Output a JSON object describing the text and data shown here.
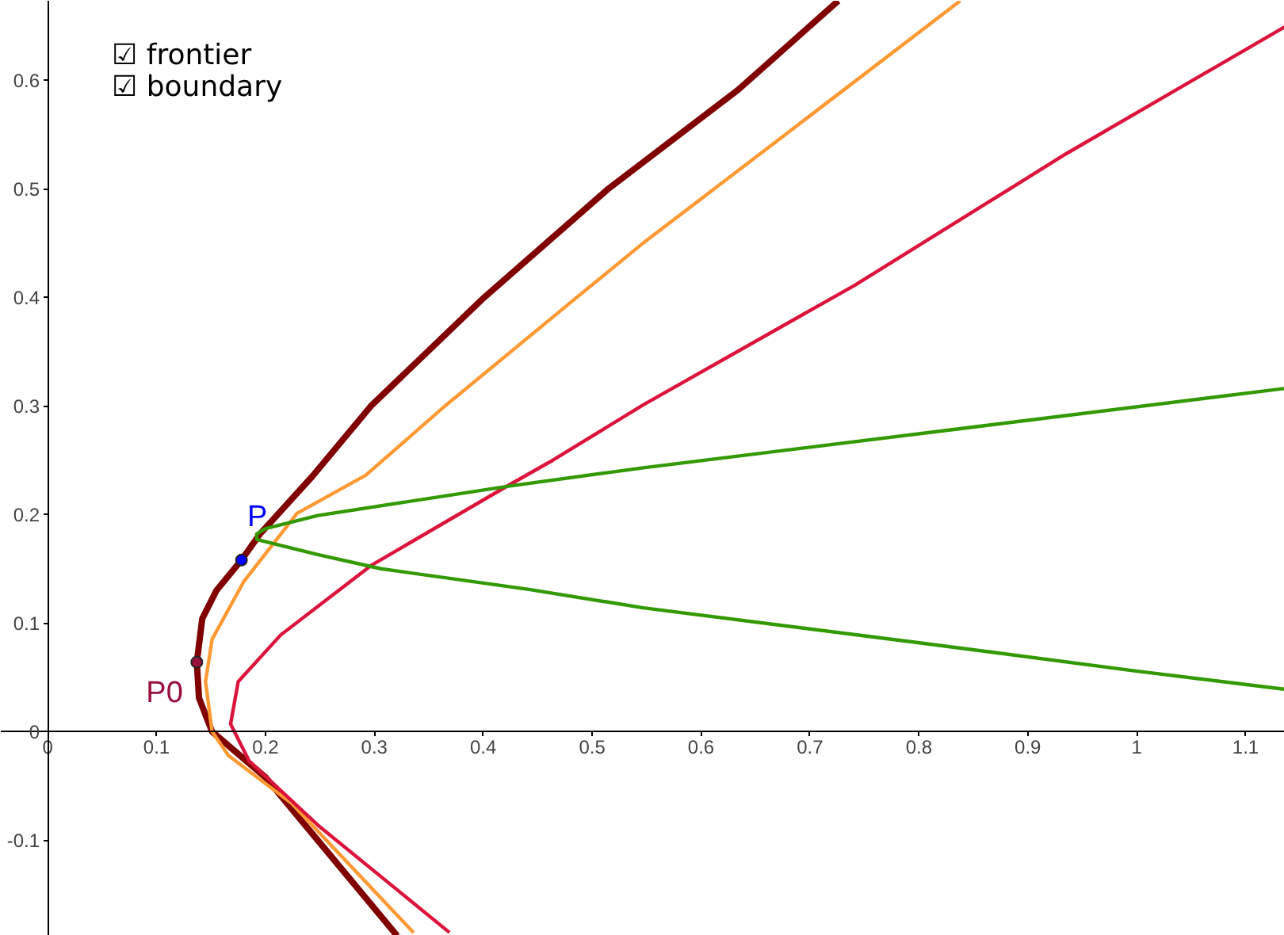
{
  "chart_data": {
    "type": "line",
    "xlim": [
      -0.043,
      1.136
    ],
    "ylim": [
      -0.188,
      0.673
    ],
    "xticks": [
      0,
      0.1,
      0.2,
      0.3,
      0.4,
      0.5,
      0.6,
      0.7,
      0.8,
      0.9,
      1,
      1.1
    ],
    "yticks": [
      -0.1,
      0,
      0.1,
      0.2,
      0.3,
      0.4,
      0.5,
      0.6
    ],
    "series": [
      {
        "color": "#800000",
        "x": [
          0.321,
          0.248,
          0.2,
          0.151,
          0.139,
          0.137,
          0.142,
          0.155,
          0.178,
          0.195,
          0.243,
          0.297,
          0.401,
          0.515,
          0.634,
          0.726
        ],
        "values": [
          -0.188,
          -0.1,
          -0.042,
          0,
          0.031,
          0.064,
          0.104,
          0.13,
          0.158,
          0.182,
          0.235,
          0.3,
          0.4,
          0.5,
          0.591,
          0.673
        ]
      },
      {
        "color": "#ff9933",
        "x": [
          0.336,
          0.224,
          0.166,
          0.151,
          0.145,
          0.151,
          0.18,
          0.229,
          0.292,
          0.365,
          0.486,
          0.547,
          0.692,
          0.838
        ],
        "values": [
          -0.185,
          -0.066,
          -0.022,
          0,
          0.046,
          0.085,
          0.138,
          0.201,
          0.236,
          0.3,
          0.4,
          0.45,
          0.561,
          0.673
        ]
      },
      {
        "color": "#dc143c",
        "x": [
          0.369,
          0.248,
          0.185,
          0.168,
          0.175,
          0.214,
          0.297,
          0.42,
          0.464,
          0.547,
          0.741,
          0.935,
          1.136
        ],
        "values": [
          -0.185,
          -0.086,
          -0.027,
          0.007,
          0.046,
          0.089,
          0.153,
          0.225,
          0.25,
          0.301,
          0.411,
          0.532,
          0.649
        ]
      },
      {
        "color": "#339900",
        "x": [
          1.136,
          0.838,
          0.547,
          0.423,
          0.248,
          0.2,
          0.192,
          0.192,
          0.248,
          0.306,
          0.442,
          0.547,
          0.799,
          0.998,
          1.136
        ],
        "values": [
          0.316,
          0.279,
          0.243,
          0.226,
          0.199,
          0.187,
          0.182,
          0.177,
          0.163,
          0.15,
          0.131,
          0.114,
          0.082,
          0.056,
          0.039
        ]
      },
      {
        "type": "scatter",
        "marker": "circle",
        "x": [
          0.137,
          0.178
        ],
        "values": [
          0.064,
          0.158
        ],
        "colors": [
          "#99103a",
          "#0000ff"
        ]
      }
    ],
    "annotations": [
      {
        "text": "P0",
        "x": 0.137,
        "y": 0.064
      },
      {
        "text": "P",
        "x": 0.192,
        "y": 0.182
      },
      "☑ frontier",
      "☑ boundary"
    ]
  }
}
